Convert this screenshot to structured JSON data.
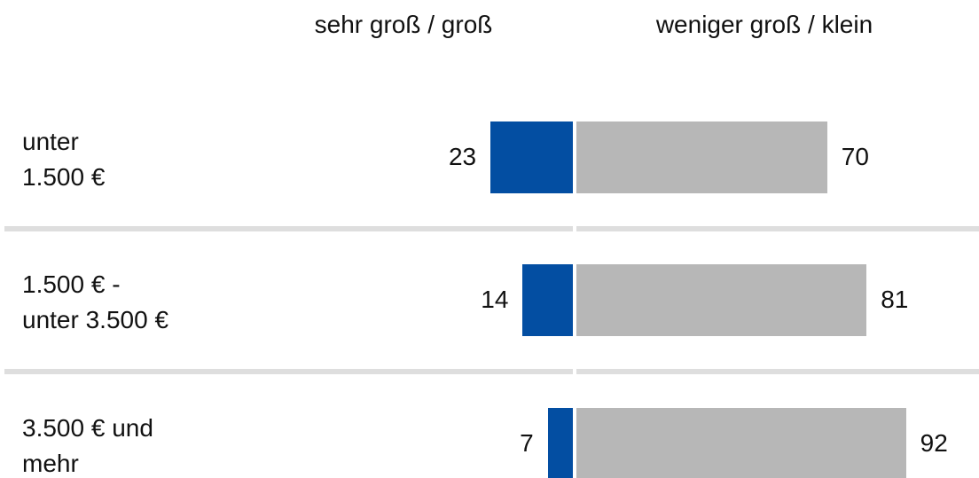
{
  "chart_data": {
    "type": "diverging-bar",
    "categories": [
      "unter\n1.500 €",
      "1.500 € -\nunter 3.500 €",
      "3.500 € und\nmehr"
    ],
    "series": [
      {
        "name": "sehr groß / groß",
        "color": "#034ea2",
        "values": [
          23,
          14,
          7
        ]
      },
      {
        "name": "weniger groß / klein",
        "color": "#b7b7b7",
        "values": [
          70,
          81,
          92
        ]
      }
    ]
  }
}
